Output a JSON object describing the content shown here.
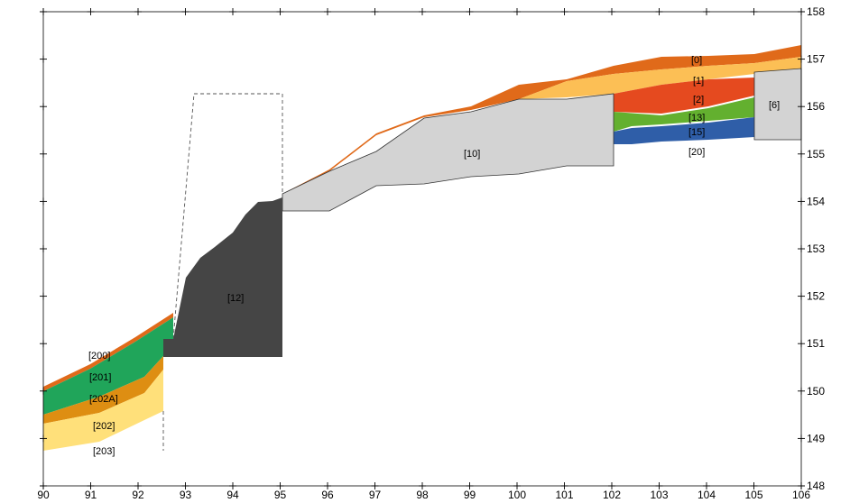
{
  "axes": {
    "x_ticks": [
      "90",
      "91",
      "92",
      "93",
      "94",
      "95",
      "96",
      "97",
      "98",
      "99",
      "100",
      "101",
      "102",
      "103",
      "104",
      "105",
      "106"
    ],
    "y_ticks": [
      "148",
      "149",
      "150",
      "151",
      "152",
      "153",
      "154",
      "155",
      "156",
      "157",
      "158"
    ]
  },
  "layers": [
    {
      "id": "l0",
      "label": "[0]",
      "color": "#e06a1a"
    },
    {
      "id": "l1",
      "label": "[1]",
      "color": "#fcbf55"
    },
    {
      "id": "l2",
      "label": "[2]",
      "color": "#e54a1f"
    },
    {
      "id": "l13",
      "label": "[13]",
      "color": "#63b02f"
    },
    {
      "id": "l15",
      "label": "[15]",
      "color": "#2f5ea8"
    },
    {
      "id": "l20",
      "label": "[20]",
      "color": "#ffffff"
    },
    {
      "id": "l6",
      "label": "[6]",
      "color": "#d3d3d3"
    },
    {
      "id": "l10",
      "label": "[10]",
      "color": "#d3d3d3"
    },
    {
      "id": "l12",
      "label": "[12]",
      "color": "#454545"
    },
    {
      "id": "l200",
      "label": "[200]",
      "color": "#e06a1a"
    },
    {
      "id": "l201",
      "label": "[201]",
      "color": "#20a55a"
    },
    {
      "id": "l202A",
      "label": "[202A]",
      "color": "#de8e12"
    },
    {
      "id": "l202",
      "label": "[202]",
      "color": "#ffe07a"
    },
    {
      "id": "l203",
      "label": "[203]",
      "color": "#ffffff"
    }
  ]
}
